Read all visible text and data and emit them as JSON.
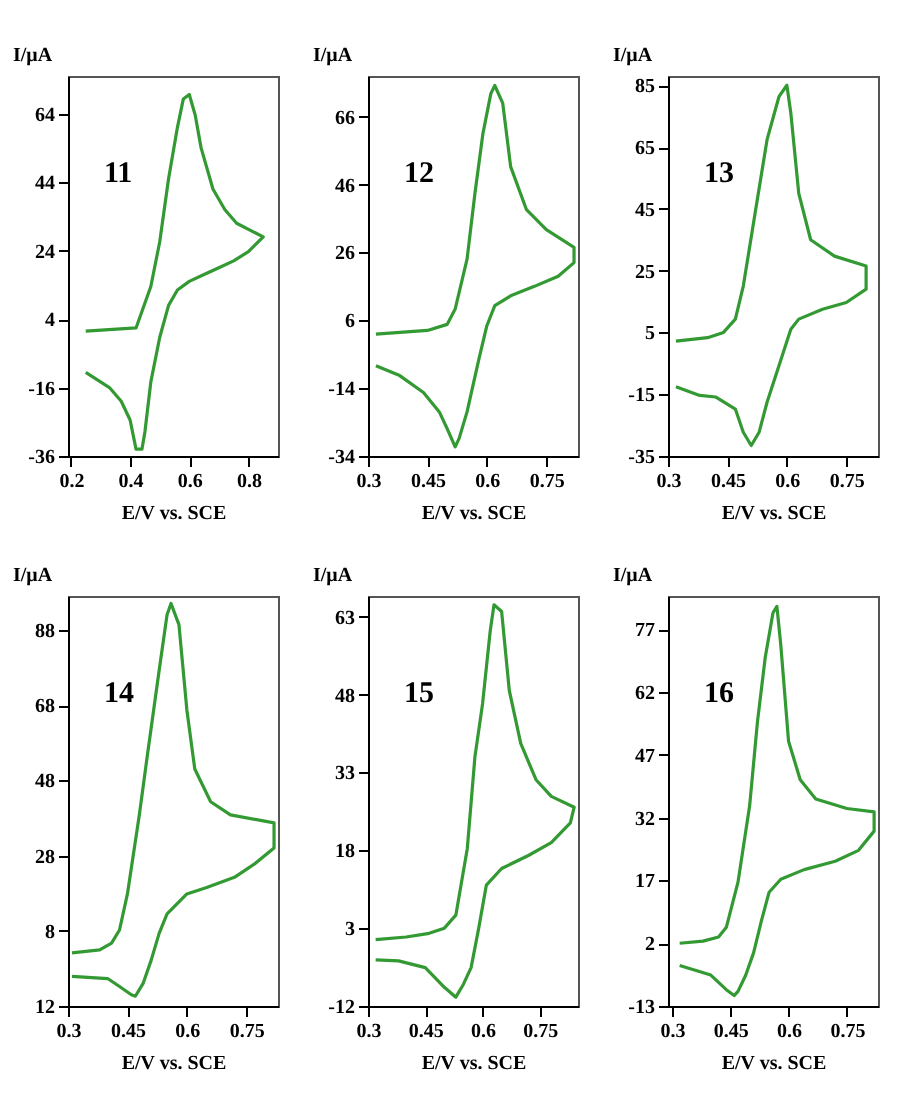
{
  "chart_data": [
    {
      "type": "line",
      "xlabel": "E/V vs. SCE",
      "ylabel": "I/μA",
      "annotations": [
        "11"
      ],
      "color": "#339933",
      "xlim": [
        0.19,
        0.9
      ],
      "ylim": [
        -36,
        75
      ],
      "xticks": [
        0.2,
        0.4,
        0.6,
        0.8
      ],
      "yticks": [
        -36,
        -16,
        4,
        24,
        44,
        64
      ],
      "x": [
        0.25,
        0.42,
        0.47,
        0.5,
        0.53,
        0.56,
        0.58,
        0.6,
        0.62,
        0.64,
        0.68,
        0.72,
        0.76,
        0.85,
        0.8,
        0.75,
        0.7,
        0.65,
        0.6,
        0.56,
        0.53,
        0.5,
        0.47,
        0.45,
        0.44,
        0.42,
        0.4,
        0.37,
        0.33,
        0.25
      ],
      "values": [
        0.5,
        1.4,
        13.5,
        26.5,
        45,
        60,
        68.3,
        69.6,
        63.6,
        54,
        42,
        36,
        32,
        28,
        23.7,
        21,
        19,
        17,
        15,
        12.5,
        8,
        -1.4,
        -14.4,
        -29,
        -34,
        -34,
        -25.5,
        -20,
        -16,
        -11.6
      ]
    },
    {
      "type": "line",
      "xlabel": "E/V vs. SCE",
      "ylabel": "I/μA",
      "annotations": [
        "12"
      ],
      "color": "#339933",
      "xlim": [
        0.3,
        0.83
      ],
      "ylim": [
        -34,
        78
      ],
      "xticks": [
        0.3,
        0.45,
        0.6,
        0.75
      ],
      "yticks": [
        -34,
        -14,
        6,
        26,
        46,
        66
      ],
      "x": [
        0.32,
        0.45,
        0.5,
        0.52,
        0.55,
        0.57,
        0.59,
        0.61,
        0.62,
        0.64,
        0.66,
        0.7,
        0.75,
        0.82,
        0.82,
        0.78,
        0.72,
        0.66,
        0.62,
        0.6,
        0.58,
        0.55,
        0.53,
        0.52,
        0.5,
        0.48,
        0.44,
        0.38,
        0.32
      ],
      "values": [
        1.9,
        3,
        4.8,
        9.3,
        24,
        43.5,
        61,
        72.8,
        75.2,
        70,
        51.3,
        38.6,
        32.7,
        27.5,
        23,
        19,
        16,
        13.2,
        10.3,
        4.4,
        -5.4,
        -21,
        -28.8,
        -31.3,
        -26,
        -21,
        -15.3,
        -10.3,
        -7.4
      ]
    },
    {
      "type": "line",
      "xlabel": "E/V vs. SCE",
      "ylabel": "I/μA",
      "annotations": [
        "13"
      ],
      "color": "#339933",
      "xlim": [
        0.3,
        0.83
      ],
      "ylim": [
        -35,
        88
      ],
      "xticks": [
        0.3,
        0.45,
        0.6,
        0.75
      ],
      "yticks": [
        -35,
        -15,
        5,
        25,
        45,
        65,
        85
      ],
      "x": [
        0.32,
        0.4,
        0.44,
        0.47,
        0.49,
        0.52,
        0.55,
        0.58,
        0.6,
        0.61,
        0.63,
        0.66,
        0.72,
        0.8,
        0.8,
        0.75,
        0.69,
        0.63,
        0.61,
        0.58,
        0.55,
        0.53,
        0.51,
        0.49,
        0.47,
        0.42,
        0.38,
        0.32
      ],
      "values": [
        2.2,
        3.3,
        5,
        9.3,
        20,
        43.7,
        67.4,
        81.3,
        85,
        76,
        50,
        35,
        29.7,
        26.5,
        19,
        14.7,
        12.5,
        9.3,
        6,
        -5.8,
        -17.6,
        -27.3,
        -31.6,
        -27.3,
        -19.8,
        -15.9,
        -15.4,
        -12.6
      ]
    },
    {
      "type": "line",
      "xlabel": "E/V vs. SCE",
      "ylabel": "I/μA",
      "annotations": [
        "14"
      ],
      "color": "#339933",
      "xlim": [
        0.3,
        0.83
      ],
      "ylim": [
        -12,
        97
      ],
      "xticks": [
        0.3,
        0.45,
        0.6,
        0.75
      ],
      "yticks": [
        {
          "value": -12,
          "label": "12"
        },
        8,
        28,
        48,
        68,
        88
      ],
      "x": [
        0.31,
        0.38,
        0.41,
        0.43,
        0.45,
        0.48,
        0.5,
        0.53,
        0.55,
        0.56,
        0.58,
        0.6,
        0.62,
        0.66,
        0.71,
        0.82,
        0.82,
        0.77,
        0.72,
        0.65,
        0.6,
        0.55,
        0.53,
        0.51,
        0.49,
        0.47,
        0.46,
        0.43,
        0.4,
        0.31
      ],
      "values": [
        2.1,
        2.9,
        4.7,
        8.2,
        17.8,
        38.8,
        54.4,
        77.2,
        92,
        95,
        89.4,
        66.7,
        51,
        42.3,
        38.8,
        36.7,
        30,
        25.7,
        22.2,
        19.5,
        17.8,
        12.5,
        7.3,
        0.2,
        -5.9,
        -9.4,
        -9,
        -6.8,
        -4.7,
        -4.1
      ]
    },
    {
      "type": "line",
      "xlabel": "E/V vs. SCE",
      "ylabel": "I/μA",
      "annotations": [
        "15"
      ],
      "color": "#339933",
      "xlim": [
        0.3,
        0.85
      ],
      "ylim": [
        -12,
        67
      ],
      "xticks": [
        0.3,
        0.45,
        0.6,
        0.75
      ],
      "yticks": [
        -12,
        3,
        18,
        33,
        48,
        63
      ],
      "x": [
        0.32,
        0.4,
        0.46,
        0.5,
        0.53,
        0.56,
        0.58,
        0.6,
        0.62,
        0.63,
        0.65,
        0.67,
        0.7,
        0.74,
        0.78,
        0.84,
        0.83,
        0.78,
        0.72,
        0.65,
        0.61,
        0.59,
        0.57,
        0.55,
        0.53,
        0.5,
        0.45,
        0.38,
        0.32
      ],
      "values": [
        0.8,
        1.3,
        2,
        3,
        5.5,
        18.3,
        36,
        46.2,
        60.2,
        65.3,
        64,
        48.8,
        38.6,
        31.6,
        28.4,
        26.3,
        23.3,
        19.5,
        17,
        14.5,
        11.3,
        3,
        -4.6,
        -7.8,
        -10.3,
        -8.4,
        -4.6,
        -3.3,
        -3.1
      ]
    },
    {
      "type": "line",
      "xlabel": "E/V vs. SCE",
      "ylabel": "I/μA",
      "annotations": [
        "16"
      ],
      "color": "#339933",
      "xlim": [
        0.29,
        0.83
      ],
      "ylim": [
        -13,
        85
      ],
      "xticks": [
        0.3,
        0.45,
        0.6,
        0.75
      ],
      "yticks": [
        -13,
        2,
        17,
        32,
        47,
        62,
        77
      ],
      "x": [
        0.32,
        0.38,
        0.42,
        0.44,
        0.47,
        0.5,
        0.52,
        0.54,
        0.56,
        0.57,
        0.58,
        0.6,
        0.63,
        0.67,
        0.75,
        0.82,
        0.82,
        0.78,
        0.72,
        0.64,
        0.58,
        0.55,
        0.53,
        0.51,
        0.49,
        0.47,
        0.46,
        0.44,
        0.4,
        0.32
      ],
      "values": [
        2,
        2.5,
        3.5,
        5.8,
        16.6,
        34.9,
        54.9,
        70.3,
        81,
        82.5,
        73.3,
        50.3,
        41.1,
        36.5,
        34.2,
        33.4,
        28.8,
        24.2,
        21.6,
        19.6,
        17.3,
        14.2,
        7.3,
        -0.3,
        -5.6,
        -9.5,
        -10.5,
        -9.1,
        -5.6,
        -3.3
      ]
    }
  ]
}
